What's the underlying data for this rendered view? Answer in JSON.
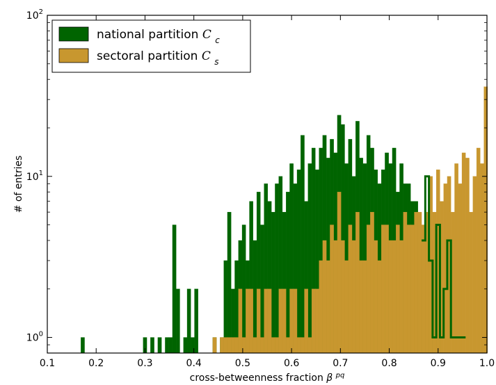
{
  "chart_data": {
    "type": "histogram",
    "title": "",
    "xlabel": "cross-betweenness fraction",
    "xlabel_symbol": "β",
    "xlabel_superscript": "pq",
    "ylabel": "# of entries",
    "xlim": [
      0.1,
      1.0
    ],
    "ylim": [
      0.8,
      100
    ],
    "yscale": "log",
    "xticks": [
      0.1,
      0.2,
      0.3,
      0.4,
      0.5,
      0.6,
      0.7,
      0.8,
      0.9,
      1.0
    ],
    "xtick_labels": [
      "0.1",
      "0.2",
      "0.3",
      "0.4",
      "0.5",
      "0.6",
      "0.7",
      "0.8",
      "0.9",
      "1.0"
    ],
    "yticks": [
      {
        "base": "10",
        "exp": "0",
        "value": 1
      },
      {
        "base": "10",
        "exp": "1",
        "value": 10
      },
      {
        "base": "10",
        "exp": "2",
        "value": 100
      }
    ],
    "grid": false,
    "legend_position": "top-left",
    "bins": {
      "start": 0.1,
      "end": 1.0,
      "width": 0.0075
    },
    "series": [
      {
        "name": "national partition",
        "symbol": "C",
        "subscript": "c",
        "color": "#006400",
        "style": "filled",
        "bins": [
          {
            "x": 0.1725,
            "y": 1
          },
          {
            "x": 0.3,
            "y": 1
          },
          {
            "x": 0.315,
            "y": 1
          },
          {
            "x": 0.33,
            "y": 1
          },
          {
            "x": 0.345,
            "y": 1
          },
          {
            "x": 0.3525,
            "y": 1
          },
          {
            "x": 0.36,
            "y": 5
          },
          {
            "x": 0.3675,
            "y": 2
          },
          {
            "x": 0.3825,
            "y": 1
          },
          {
            "x": 0.39,
            "y": 2
          },
          {
            "x": 0.3975,
            "y": 1
          },
          {
            "x": 0.405,
            "y": 2
          },
          {
            "x": 0.4425,
            "y": 1
          },
          {
            "x": 0.4575,
            "y": 1
          },
          {
            "x": 0.465,
            "y": 3
          },
          {
            "x": 0.4725,
            "y": 6
          },
          {
            "x": 0.48,
            "y": 2
          },
          {
            "x": 0.4875,
            "y": 3
          },
          {
            "x": 0.495,
            "y": 4
          },
          {
            "x": 0.5025,
            "y": 5
          },
          {
            "x": 0.51,
            "y": 3
          },
          {
            "x": 0.5175,
            "y": 7
          },
          {
            "x": 0.525,
            "y": 4
          },
          {
            "x": 0.5325,
            "y": 8
          },
          {
            "x": 0.54,
            "y": 5
          },
          {
            "x": 0.5475,
            "y": 9
          },
          {
            "x": 0.555,
            "y": 7
          },
          {
            "x": 0.5625,
            "y": 6
          },
          {
            "x": 0.57,
            "y": 9
          },
          {
            "x": 0.5775,
            "y": 10
          },
          {
            "x": 0.585,
            "y": 6
          },
          {
            "x": 0.5925,
            "y": 8
          },
          {
            "x": 0.6,
            "y": 12
          },
          {
            "x": 0.6075,
            "y": 9
          },
          {
            "x": 0.615,
            "y": 11
          },
          {
            "x": 0.6225,
            "y": 18
          },
          {
            "x": 0.63,
            "y": 7
          },
          {
            "x": 0.6375,
            "y": 12
          },
          {
            "x": 0.645,
            "y": 15
          },
          {
            "x": 0.6525,
            "y": 11
          },
          {
            "x": 0.66,
            "y": 15
          },
          {
            "x": 0.6675,
            "y": 18
          },
          {
            "x": 0.675,
            "y": 13
          },
          {
            "x": 0.6825,
            "y": 17
          },
          {
            "x": 0.69,
            "y": 14
          },
          {
            "x": 0.6975,
            "y": 24
          },
          {
            "x": 0.705,
            "y": 21
          },
          {
            "x": 0.7125,
            "y": 12
          },
          {
            "x": 0.72,
            "y": 17
          },
          {
            "x": 0.7275,
            "y": 10
          },
          {
            "x": 0.735,
            "y": 22
          },
          {
            "x": 0.7425,
            "y": 13
          },
          {
            "x": 0.75,
            "y": 12
          },
          {
            "x": 0.7575,
            "y": 18
          },
          {
            "x": 0.765,
            "y": 15
          },
          {
            "x": 0.7725,
            "y": 11
          },
          {
            "x": 0.78,
            "y": 9
          },
          {
            "x": 0.7875,
            "y": 11
          },
          {
            "x": 0.795,
            "y": 14
          },
          {
            "x": 0.8025,
            "y": 12
          },
          {
            "x": 0.81,
            "y": 15
          },
          {
            "x": 0.8175,
            "y": 8
          },
          {
            "x": 0.825,
            "y": 12
          },
          {
            "x": 0.8325,
            "y": 9
          },
          {
            "x": 0.84,
            "y": 9
          },
          {
            "x": 0.8475,
            "y": 7
          },
          {
            "x": 0.855,
            "y": 7
          },
          {
            "x": 0.8625,
            "y": 5
          },
          {
            "x": 0.87,
            "y": 4
          },
          {
            "x": 0.8775,
            "y": 4
          },
          {
            "x": 0.885,
            "y": 4
          },
          {
            "x": 0.8925,
            "y": 3
          },
          {
            "x": 0.9,
            "y": 2
          }
        ]
      },
      {
        "name": "sectoral partition",
        "symbol": "C",
        "subscript": "s",
        "color": "#c8972f",
        "style": "filled",
        "bins": [
          {
            "x": 0.4425,
            "y": 1
          },
          {
            "x": 0.4575,
            "y": 1
          },
          {
            "x": 0.465,
            "y": 1
          },
          {
            "x": 0.4725,
            "y": 1
          },
          {
            "x": 0.48,
            "y": 1
          },
          {
            "x": 0.4875,
            "y": 1
          },
          {
            "x": 0.495,
            "y": 2
          },
          {
            "x": 0.5025,
            "y": 1
          },
          {
            "x": 0.51,
            "y": 2
          },
          {
            "x": 0.5175,
            "y": 2
          },
          {
            "x": 0.525,
            "y": 1
          },
          {
            "x": 0.5325,
            "y": 2
          },
          {
            "x": 0.54,
            "y": 1
          },
          {
            "x": 0.5475,
            "y": 2
          },
          {
            "x": 0.555,
            "y": 2
          },
          {
            "x": 0.5625,
            "y": 1
          },
          {
            "x": 0.57,
            "y": 1
          },
          {
            "x": 0.5775,
            "y": 2
          },
          {
            "x": 0.585,
            "y": 2
          },
          {
            "x": 0.5925,
            "y": 1
          },
          {
            "x": 0.6,
            "y": 2
          },
          {
            "x": 0.6075,
            "y": 2
          },
          {
            "x": 0.615,
            "y": 1
          },
          {
            "x": 0.6225,
            "y": 1
          },
          {
            "x": 0.63,
            "y": 2
          },
          {
            "x": 0.6375,
            "y": 1
          },
          {
            "x": 0.645,
            "y": 2
          },
          {
            "x": 0.6525,
            "y": 2
          },
          {
            "x": 0.66,
            "y": 3
          },
          {
            "x": 0.6675,
            "y": 4
          },
          {
            "x": 0.675,
            "y": 3
          },
          {
            "x": 0.6825,
            "y": 5
          },
          {
            "x": 0.69,
            "y": 4
          },
          {
            "x": 0.6975,
            "y": 8
          },
          {
            "x": 0.705,
            "y": 4
          },
          {
            "x": 0.7125,
            "y": 3
          },
          {
            "x": 0.72,
            "y": 5
          },
          {
            "x": 0.7275,
            "y": 4
          },
          {
            "x": 0.735,
            "y": 6
          },
          {
            "x": 0.7425,
            "y": 3
          },
          {
            "x": 0.75,
            "y": 3
          },
          {
            "x": 0.7575,
            "y": 5
          },
          {
            "x": 0.765,
            "y": 6
          },
          {
            "x": 0.7725,
            "y": 4
          },
          {
            "x": 0.78,
            "y": 3
          },
          {
            "x": 0.7875,
            "y": 5
          },
          {
            "x": 0.795,
            "y": 5
          },
          {
            "x": 0.8025,
            "y": 4
          },
          {
            "x": 0.81,
            "y": 4
          },
          {
            "x": 0.8175,
            "y": 5
          },
          {
            "x": 0.825,
            "y": 4
          },
          {
            "x": 0.8325,
            "y": 6
          },
          {
            "x": 0.84,
            "y": 5
          },
          {
            "x": 0.8475,
            "y": 5
          },
          {
            "x": 0.855,
            "y": 6
          },
          {
            "x": 0.8625,
            "y": 6
          },
          {
            "x": 0.87,
            "y": 5
          },
          {
            "x": 0.8775,
            "y": 6
          },
          {
            "x": 0.885,
            "y": 10
          },
          {
            "x": 0.8925,
            "y": 6
          },
          {
            "x": 0.9,
            "y": 11
          },
          {
            "x": 0.9075,
            "y": 7
          },
          {
            "x": 0.915,
            "y": 9
          },
          {
            "x": 0.9225,
            "y": 10
          },
          {
            "x": 0.93,
            "y": 6
          },
          {
            "x": 0.9375,
            "y": 12
          },
          {
            "x": 0.945,
            "y": 9
          },
          {
            "x": 0.9525,
            "y": 14
          },
          {
            "x": 0.96,
            "y": 13
          },
          {
            "x": 0.9675,
            "y": 6
          },
          {
            "x": 0.975,
            "y": 10
          },
          {
            "x": 0.9825,
            "y": 15
          },
          {
            "x": 0.99,
            "y": 12
          },
          {
            "x": 0.9975,
            "y": 36
          }
        ]
      },
      {
        "name": "national partition (outline)",
        "color": "#006400",
        "style": "step",
        "bins": [
          {
            "x": 0.87,
            "y": 4
          },
          {
            "x": 0.8775,
            "y": 10
          },
          {
            "x": 0.885,
            "y": 3
          },
          {
            "x": 0.8925,
            "y": 1
          },
          {
            "x": 0.9,
            "y": 5
          },
          {
            "x": 0.9075,
            "y": 1
          },
          {
            "x": 0.915,
            "y": 2
          },
          {
            "x": 0.9225,
            "y": 4
          },
          {
            "x": 0.93,
            "y": 1
          },
          {
            "x": 0.9375,
            "y": 1
          },
          {
            "x": 0.945,
            "y": 1
          },
          {
            "x": 0.9525,
            "y": 1
          }
        ]
      }
    ]
  }
}
